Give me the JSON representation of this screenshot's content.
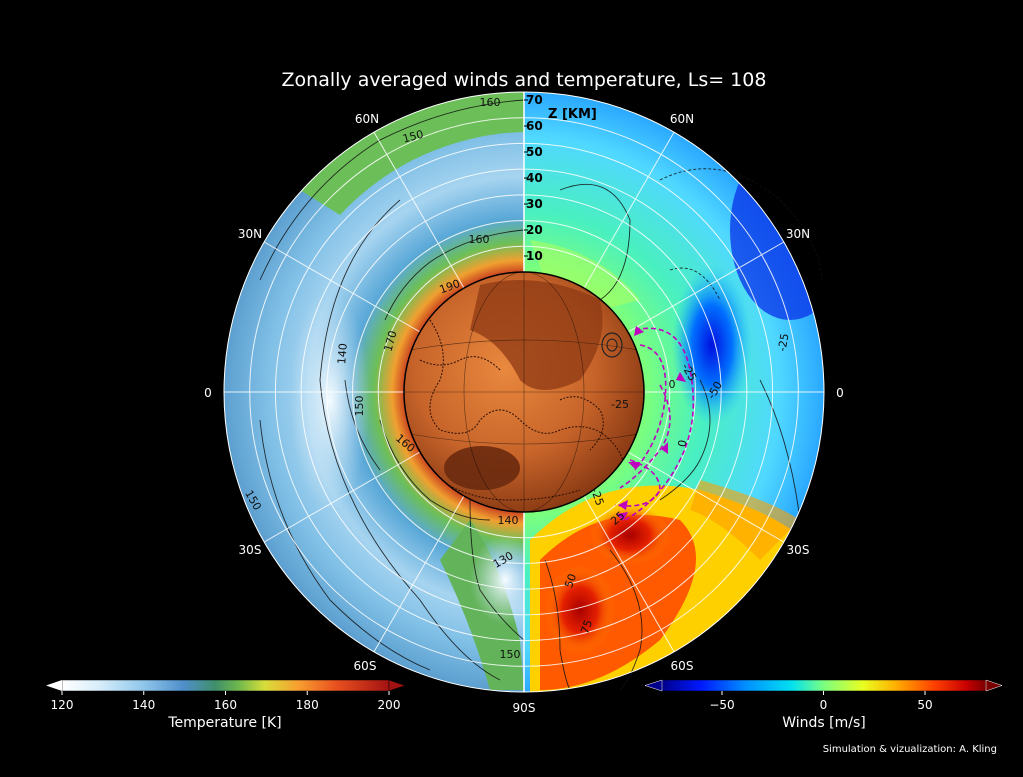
{
  "title": "Zonally averaged winds and temperature, Ls= 108",
  "z_axis": {
    "label": "Z [KM]",
    "ticks": [
      "70",
      "60",
      "50",
      "40",
      "30",
      "20",
      "10"
    ]
  },
  "latitude_labels": {
    "north60_left": "60N",
    "north60_right": "60N",
    "north30_left": "30N",
    "north30_right": "30N",
    "equator_left": "0",
    "equator_right": "0",
    "south30_left": "30S",
    "south30_right": "30S",
    "south60_left": "60S",
    "south60_right": "60S",
    "south_pole": "90S"
  },
  "temperature_contour_labels": [
    "160",
    "150",
    "160",
    "190",
    "170",
    "140",
    "150",
    "160",
    "150",
    "140",
    "130",
    "150"
  ],
  "wind_contour_labels": [
    "-25",
    "-25",
    "0",
    "-25",
    "-50",
    "0",
    "-25",
    "25",
    "50",
    "75"
  ],
  "temperature_colorbar": {
    "label": "Temperature [K]",
    "ticks": [
      "120",
      "140",
      "160",
      "180",
      "200"
    ],
    "colors": [
      "#ffffff",
      "#cfe8f7",
      "#8fc6ea",
      "#5a9fd4",
      "#3f7fc0",
      "#4ca35a",
      "#7fc14c",
      "#d8de3a",
      "#f8b030",
      "#ef6a22",
      "#d63a1c",
      "#a81414"
    ]
  },
  "winds_colorbar": {
    "label": "Winds [m/s]",
    "ticks": [
      "−50",
      "0",
      "50"
    ],
    "colors": [
      "#0000a0",
      "#0018ff",
      "#0090ff",
      "#00e0f0",
      "#7cff80",
      "#e8ff20",
      "#ffb000",
      "#ff4000",
      "#c80000",
      "#7a0000"
    ]
  },
  "credit": "Simulation & vizualization: A. Kling"
}
